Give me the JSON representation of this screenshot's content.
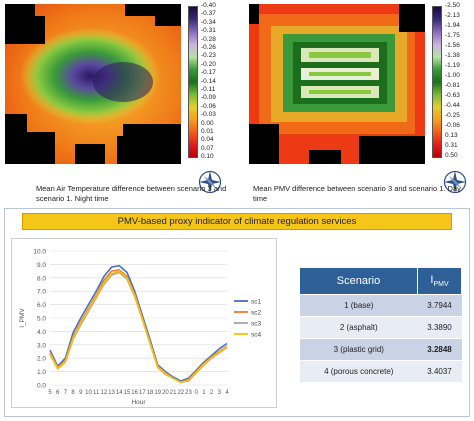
{
  "left_map": {
    "caption": "Mean Air Temperature difference between scenario 3 and scenario 1. Night time",
    "colorbar_labels": [
      "-0.40",
      "-0.37",
      "-0.34",
      "-0.31",
      "-0.28",
      "-0.26",
      "-0.23",
      "-0.20",
      "-0.17",
      "-0.14",
      "-0.11",
      "-0.09",
      "-0.06",
      "-0.03",
      "0.00",
      "0.01",
      "0.04",
      "0.07",
      "0.10"
    ]
  },
  "right_map": {
    "caption": "Mean PMV difference between scenario 3 and scenario 1. Day time",
    "colorbar_labels": [
      "-2.50",
      "-2.13",
      "-1.94",
      "-1.75",
      "-1.56",
      "-1.38",
      "-1.19",
      "-1.00",
      "-0.81",
      "-0.63",
      "-0.44",
      "-0.25",
      "-0.06",
      "0.13",
      "0.31",
      "0.50"
    ]
  },
  "compass_icon": "compass-rose-icon",
  "banner": {
    "title": "PMV-based proxy indicator of climate regulation services"
  },
  "chart_data": {
    "type": "line",
    "x": [
      "5",
      "6",
      "7",
      "8",
      "9",
      "10",
      "11",
      "12",
      "13",
      "14",
      "15",
      "16",
      "17",
      "18",
      "19",
      "20",
      "21",
      "22",
      "23",
      "0",
      "1",
      "2",
      "3",
      "4"
    ],
    "xlabel": "Hour",
    "ylabel": "I_PMV",
    "ylim": [
      0,
      10
    ],
    "yticks": [
      "0.0",
      "1.0",
      "2.0",
      "3.0",
      "4.0",
      "5.0",
      "6.0",
      "7.0",
      "8.0",
      "9.0",
      "10.0"
    ],
    "legend_position": "right",
    "series": [
      {
        "name": "sc1",
        "color": "#4472c4",
        "values": [
          2.6,
          1.4,
          2.0,
          3.9,
          5.0,
          6.0,
          7.0,
          8.1,
          8.8,
          8.9,
          8.4,
          7.0,
          5.2,
          3.4,
          1.5,
          1.0,
          0.6,
          0.3,
          0.5,
          1.1,
          1.7,
          2.2,
          2.7,
          3.1
        ]
      },
      {
        "name": "sc2",
        "color": "#ed7d31",
        "values": [
          2.4,
          1.3,
          1.8,
          3.6,
          4.7,
          5.7,
          6.7,
          7.8,
          8.5,
          8.6,
          8.1,
          6.8,
          5.0,
          3.2,
          1.4,
          0.9,
          0.5,
          0.2,
          0.4,
          1.0,
          1.6,
          2.1,
          2.5,
          2.9
        ]
      },
      {
        "name": "sc3",
        "color": "#a5a5a5",
        "values": [
          2.3,
          1.2,
          1.7,
          3.4,
          4.5,
          5.5,
          6.5,
          7.5,
          8.2,
          8.4,
          7.9,
          6.6,
          4.9,
          3.1,
          1.3,
          0.8,
          0.5,
          0.2,
          0.3,
          0.9,
          1.5,
          2.0,
          2.4,
          2.8
        ]
      },
      {
        "name": "sc4",
        "color": "#ffc000",
        "values": [
          2.35,
          1.25,
          1.75,
          3.5,
          4.6,
          5.6,
          6.6,
          7.6,
          8.3,
          8.5,
          8.0,
          6.7,
          4.95,
          3.15,
          1.35,
          0.85,
          0.5,
          0.2,
          0.35,
          0.95,
          1.55,
          2.05,
          2.45,
          2.85
        ]
      }
    ]
  },
  "table": {
    "header_scenario": "Scenario",
    "header_ipmv_main": "I",
    "header_ipmv_sub": "PMV",
    "rows": [
      {
        "scenario": "1 (base)",
        "value": "3.7944"
      },
      {
        "scenario": "2 (asphalt)",
        "value": "3.3890"
      },
      {
        "scenario": "3 (plastic grid)",
        "value": "3.2848"
      },
      {
        "scenario": "4 (porous concrete)",
        "value": "3.4037"
      }
    ]
  }
}
